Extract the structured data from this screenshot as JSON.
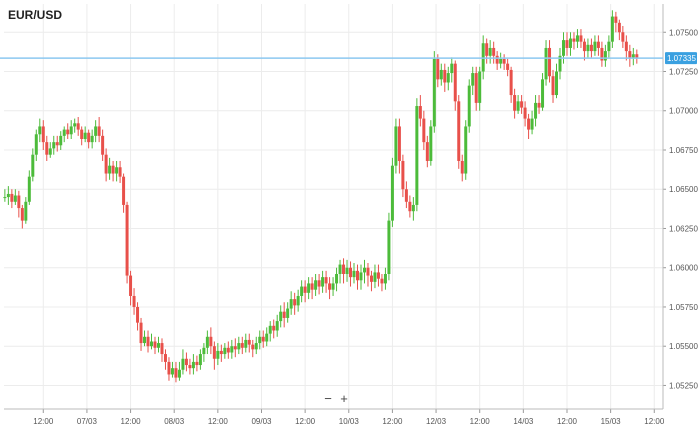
{
  "chart_data": {
    "type": "candlestick",
    "title": "EUR/USD",
    "ylim": [
      1.051,
      1.0768
    ],
    "y_ticks": [
      "1.07500",
      "1.07250",
      "1.07000",
      "1.06750",
      "1.06500",
      "1.06250",
      "1.06000",
      "1.05750",
      "1.05500",
      "1.05250"
    ],
    "x_ticks": [
      "12:00",
      "07/03",
      "12:00",
      "08/03",
      "12:00",
      "09/03",
      "12:00",
      "10/03",
      "12:00",
      "12/03",
      "12:00",
      "14/03",
      "12:00",
      "15/03",
      "12:00"
    ],
    "x_tick_positions": [
      0.5,
      1,
      1.5,
      2,
      2.5,
      3,
      3.5,
      4,
      4.5,
      5,
      5.5,
      6,
      6.5,
      7,
      7.5
    ],
    "x_range": [
      0.05,
      7.6
    ],
    "current_price": "1.07335",
    "current_price_value": 1.07335,
    "colors": {
      "up": "#4cbb3a",
      "down": "#e8504a",
      "price_line": "#8cc8f0",
      "price_tag": "#3aa0e0",
      "grid": "#ececec"
    },
    "grid": true,
    "candles": [
      [
        0.06,
        1.0645,
        1.0645,
        1.065,
        1.0642
      ],
      [
        0.1,
        1.0645,
        1.0647,
        1.0652,
        1.064
      ],
      [
        0.14,
        1.0647,
        1.0642,
        1.065,
        1.0638
      ],
      [
        0.18,
        1.0642,
        1.0646,
        1.065,
        1.064
      ],
      [
        0.22,
        1.0646,
        1.0638,
        1.0649,
        1.0632
      ],
      [
        0.26,
        1.0638,
        1.063,
        1.064,
        1.0625
      ],
      [
        0.3,
        1.063,
        1.0642,
        1.0645,
        1.0628
      ],
      [
        0.34,
        1.0642,
        1.0658,
        1.0662,
        1.064
      ],
      [
        0.38,
        1.0658,
        1.0672,
        1.0676,
        1.0655
      ],
      [
        0.42,
        1.0672,
        1.0685,
        1.0688,
        1.0668
      ],
      [
        0.46,
        1.0685,
        1.069,
        1.0695,
        1.068
      ],
      [
        0.5,
        1.069,
        1.068,
        1.0694,
        1.0675
      ],
      [
        0.54,
        1.068,
        1.0672,
        1.0684,
        1.0668
      ],
      [
        0.58,
        1.0672,
        1.0676,
        1.068,
        1.067
      ],
      [
        0.62,
        1.0676,
        1.068,
        1.0684,
        1.0672
      ],
      [
        0.66,
        1.068,
        1.0678,
        1.0684,
        1.0674
      ],
      [
        0.7,
        1.0678,
        1.0684,
        1.0687,
        1.0675
      ],
      [
        0.74,
        1.0684,
        1.0688,
        1.069,
        1.068
      ],
      [
        0.78,
        1.0688,
        1.0685,
        1.0692,
        1.0682
      ],
      [
        0.82,
        1.0685,
        1.069,
        1.0694,
        1.0682
      ],
      [
        0.86,
        1.069,
        1.0692,
        1.0695,
        1.0686
      ],
      [
        0.9,
        1.0692,
        1.0688,
        1.0696,
        1.0684
      ],
      [
        0.94,
        1.0688,
        1.0682,
        1.069,
        1.0678
      ],
      [
        0.98,
        1.0682,
        1.0686,
        1.069,
        1.068
      ],
      [
        1.02,
        1.0686,
        1.068,
        1.0688,
        1.0676
      ],
      [
        1.06,
        1.068,
        1.0684,
        1.0688,
        1.0676
      ],
      [
        1.1,
        1.0684,
        1.069,
        1.0694,
        1.068
      ],
      [
        1.14,
        1.069,
        1.0684,
        1.0696,
        1.068
      ],
      [
        1.18,
        1.0684,
        1.0672,
        1.0688,
        1.0668
      ],
      [
        1.22,
        1.0672,
        1.066,
        1.0676,
        1.0655
      ],
      [
        1.26,
        1.066,
        1.0665,
        1.067,
        1.0656
      ],
      [
        1.3,
        1.0665,
        1.066,
        1.0668,
        1.0655
      ],
      [
        1.34,
        1.066,
        1.0664,
        1.0668,
        1.0655
      ],
      [
        1.38,
        1.0664,
        1.0658,
        1.0668,
        1.0654
      ],
      [
        1.42,
        1.0658,
        1.064,
        1.066,
        1.0635
      ],
      [
        1.46,
        1.064,
        1.0595,
        1.0642,
        1.059
      ],
      [
        1.5,
        1.0595,
        1.0582,
        1.0598,
        1.0576
      ],
      [
        1.54,
        1.0582,
        1.0575,
        1.0587,
        1.057
      ],
      [
        1.58,
        1.0575,
        1.0565,
        1.0578,
        1.056
      ],
      [
        1.62,
        1.0565,
        1.0552,
        1.0568,
        1.0547
      ],
      [
        1.66,
        1.0552,
        1.0556,
        1.056,
        1.055
      ],
      [
        1.7,
        1.0556,
        1.055,
        1.056,
        1.0546
      ],
      [
        1.74,
        1.055,
        1.0553,
        1.0558,
        1.0548
      ],
      [
        1.78,
        1.0553,
        1.0549,
        1.0556,
        1.0545
      ],
      [
        1.82,
        1.0549,
        1.0552,
        1.0556,
        1.0546
      ],
      [
        1.86,
        1.0552,
        1.0545,
        1.0555,
        1.054
      ],
      [
        1.9,
        1.0545,
        1.054,
        1.0548,
        1.0535
      ],
      [
        1.94,
        1.054,
        1.0532,
        1.0543,
        1.0528
      ],
      [
        1.98,
        1.0532,
        1.0536,
        1.054,
        1.053
      ],
      [
        2.02,
        1.0536,
        1.053,
        1.054,
        1.0527
      ],
      [
        2.06,
        1.053,
        1.0535,
        1.054,
        1.0528
      ],
      [
        2.1,
        1.0535,
        1.0542,
        1.0548,
        1.0532
      ],
      [
        2.14,
        1.0542,
        1.0538,
        1.0546,
        1.0534
      ],
      [
        2.18,
        1.0538,
        1.0536,
        1.0542,
        1.0532
      ],
      [
        2.22,
        1.0536,
        1.054,
        1.0545,
        1.0532
      ],
      [
        2.26,
        1.054,
        1.0538,
        1.0544,
        1.0534
      ],
      [
        2.3,
        1.0538,
        1.0545,
        1.0548,
        1.0535
      ],
      [
        2.34,
        1.0545,
        1.0549,
        1.0552,
        1.054
      ],
      [
        2.38,
        1.0549,
        1.0556,
        1.056,
        1.0545
      ],
      [
        2.42,
        1.0556,
        1.055,
        1.0562,
        1.0545
      ],
      [
        2.46,
        1.055,
        1.0542,
        1.0553,
        1.0535
      ],
      [
        2.5,
        1.0542,
        1.0547,
        1.0552,
        1.0538
      ],
      [
        2.54,
        1.0547,
        1.0545,
        1.0551,
        1.054
      ],
      [
        2.58,
        1.0545,
        1.0549,
        1.0552,
        1.0542
      ],
      [
        2.62,
        1.0549,
        1.0546,
        1.0553,
        1.0542
      ],
      [
        2.66,
        1.0546,
        1.055,
        1.0554,
        1.0542
      ],
      [
        2.7,
        1.055,
        1.0548,
        1.0555,
        1.0543
      ],
      [
        2.74,
        1.0548,
        1.0552,
        1.0556,
        1.0545
      ],
      [
        2.78,
        1.0552,
        1.0549,
        1.0556,
        1.0545
      ],
      [
        2.82,
        1.0549,
        1.0554,
        1.0558,
        1.0546
      ],
      [
        2.86,
        1.0554,
        1.0551,
        1.0558,
        1.0546
      ],
      [
        2.9,
        1.0551,
        1.0548,
        1.0554,
        1.0543
      ],
      [
        2.94,
        1.0548,
        1.0552,
        1.0556,
        1.0545
      ],
      [
        2.98,
        1.0552,
        1.0556,
        1.056,
        1.0548
      ],
      [
        3.02,
        1.0556,
        1.0553,
        1.056,
        1.0549
      ],
      [
        3.06,
        1.0553,
        1.0558,
        1.0562,
        1.055
      ],
      [
        3.1,
        1.0558,
        1.0563,
        1.0566,
        1.0553
      ],
      [
        3.14,
        1.0563,
        1.056,
        1.0567,
        1.0555
      ],
      [
        3.18,
        1.056,
        1.0566,
        1.057,
        1.0556
      ],
      [
        3.22,
        1.0566,
        1.0572,
        1.0576,
        1.0562
      ],
      [
        3.26,
        1.0572,
        1.0568,
        1.0578,
        1.0562
      ],
      [
        3.3,
        1.0568,
        1.0574,
        1.0578,
        1.0565
      ],
      [
        3.34,
        1.0574,
        1.058,
        1.0585,
        1.057
      ],
      [
        3.38,
        1.058,
        1.0576,
        1.0584,
        1.057
      ],
      [
        3.42,
        1.0576,
        1.0582,
        1.0586,
        1.0572
      ],
      [
        3.46,
        1.0582,
        1.0588,
        1.0592,
        1.0578
      ],
      [
        3.5,
        1.0588,
        1.0584,
        1.0592,
        1.0578
      ],
      [
        3.54,
        1.0584,
        1.059,
        1.0594,
        1.058
      ],
      [
        3.58,
        1.059,
        1.0586,
        1.0594,
        1.058
      ],
      [
        3.62,
        1.0586,
        1.0592,
        1.0596,
        1.0582
      ],
      [
        3.66,
        1.0592,
        1.0588,
        1.0596,
        1.0583
      ],
      [
        3.7,
        1.0588,
        1.0594,
        1.0598,
        1.0584
      ],
      [
        3.74,
        1.0594,
        1.059,
        1.0598,
        1.0584
      ],
      [
        3.78,
        1.059,
        1.0586,
        1.0594,
        1.058
      ],
      [
        3.82,
        1.0586,
        1.059,
        1.0594,
        1.0582
      ],
      [
        3.86,
        1.059,
        1.0596,
        1.06,
        1.0585
      ],
      [
        3.9,
        1.0596,
        1.0602,
        1.0605,
        1.059
      ],
      [
        3.94,
        1.0602,
        1.0596,
        1.0606,
        1.059
      ],
      [
        3.98,
        1.0596,
        1.06,
        1.0605,
        1.0591
      ],
      [
        4.02,
        1.06,
        1.0594,
        1.0604,
        1.0588
      ],
      [
        4.06,
        1.0594,
        1.0598,
        1.0603,
        1.059
      ],
      [
        4.1,
        1.0598,
        1.0592,
        1.0602,
        1.0586
      ],
      [
        4.14,
        1.0592,
        1.0597,
        1.0602,
        1.0586
      ],
      [
        4.18,
        1.0597,
        1.06,
        1.0605,
        1.059
      ],
      [
        4.22,
        1.06,
        1.0595,
        1.0603,
        1.0588
      ],
      [
        4.26,
        1.0595,
        1.0591,
        1.0598,
        1.0585
      ],
      [
        4.3,
        1.0591,
        1.0597,
        1.0602,
        1.0587
      ],
      [
        4.34,
        1.0597,
        1.0593,
        1.0602,
        1.0588
      ],
      [
        4.38,
        1.0593,
        1.059,
        1.0596,
        1.0585
      ],
      [
        4.42,
        1.059,
        1.0596,
        1.06,
        1.0586
      ],
      [
        4.46,
        1.0596,
        1.063,
        1.0635,
        1.0592
      ],
      [
        4.5,
        1.063,
        1.0665,
        1.067,
        1.0626
      ],
      [
        4.54,
        1.0665,
        1.069,
        1.0695,
        1.066
      ],
      [
        4.58,
        1.069,
        1.0668,
        1.0695,
        1.066
      ],
      [
        4.62,
        1.0668,
        1.065,
        1.0672,
        1.0645
      ],
      [
        4.66,
        1.065,
        1.0642,
        1.0655,
        1.0638
      ],
      [
        4.7,
        1.0642,
        1.0636,
        1.0646,
        1.0632
      ],
      [
        4.74,
        1.0636,
        1.064,
        1.0645,
        1.063
      ],
      [
        4.78,
        1.064,
        1.0703,
        1.0708,
        1.0636
      ],
      [
        4.82,
        1.0703,
        1.0695,
        1.071,
        1.069
      ],
      [
        4.86,
        1.0695,
        1.068,
        1.07,
        1.0675
      ],
      [
        4.9,
        1.068,
        1.0668,
        1.0684,
        1.0664
      ],
      [
        4.94,
        1.0668,
        1.069,
        1.0694,
        1.0665
      ],
      [
        4.98,
        1.069,
        1.0733,
        1.0738,
        1.0686
      ],
      [
        5.02,
        1.0733,
        1.072,
        1.0736,
        1.0715
      ],
      [
        5.06,
        1.072,
        1.0726,
        1.073,
        1.0716
      ],
      [
        5.1,
        1.0726,
        1.0718,
        1.073,
        1.0712
      ],
      [
        5.14,
        1.0718,
        1.0724,
        1.0728,
        1.0713
      ],
      [
        5.18,
        1.0724,
        1.073,
        1.0734,
        1.0718
      ],
      [
        5.22,
        1.073,
        1.0706,
        1.0732,
        1.07
      ],
      [
        5.26,
        1.0706,
        1.0668,
        1.071,
        1.0663
      ],
      [
        5.3,
        1.0668,
        1.066,
        1.0672,
        1.0655
      ],
      [
        5.34,
        1.066,
        1.069,
        1.0694,
        1.0656
      ],
      [
        5.38,
        1.069,
        1.0716,
        1.072,
        1.0686
      ],
      [
        5.42,
        1.0716,
        1.0724,
        1.0728,
        1.071
      ],
      [
        5.46,
        1.0724,
        1.0705,
        1.0728,
        1.07
      ],
      [
        5.5,
        1.0705,
        1.0725,
        1.0728,
        1.07
      ],
      [
        5.54,
        1.0725,
        1.0743,
        1.0748,
        1.072
      ],
      [
        5.58,
        1.0743,
        1.0735,
        1.0746,
        1.073
      ],
      [
        5.62,
        1.0735,
        1.074,
        1.0745,
        1.073
      ],
      [
        5.66,
        1.074,
        1.0735,
        1.0744,
        1.073
      ],
      [
        5.7,
        1.0735,
        1.073,
        1.0738,
        1.0726
      ],
      [
        5.74,
        1.073,
        1.0733,
        1.0737,
        1.0727
      ],
      [
        5.78,
        1.0733,
        1.073,
        1.0736,
        1.0726
      ],
      [
        5.82,
        1.073,
        1.0726,
        1.0733,
        1.0722
      ],
      [
        5.86,
        1.0726,
        1.071,
        1.0728,
        1.0705
      ],
      [
        5.9,
        1.071,
        1.07,
        1.0714,
        1.0695
      ],
      [
        5.94,
        1.07,
        1.0706,
        1.071,
        1.0698
      ],
      [
        5.98,
        1.0706,
        1.0702,
        1.071,
        1.0698
      ],
      [
        6.02,
        1.0702,
        1.0695,
        1.0706,
        1.069
      ],
      [
        6.06,
        1.0695,
        1.0688,
        1.0698,
        1.0682
      ],
      [
        6.1,
        1.0688,
        1.0695,
        1.07,
        1.0685
      ],
      [
        6.14,
        1.0695,
        1.0705,
        1.071,
        1.069
      ],
      [
        6.18,
        1.0705,
        1.0702,
        1.071,
        1.0698
      ],
      [
        6.22,
        1.0702,
        1.072,
        1.0724,
        1.07
      ],
      [
        6.26,
        1.072,
        1.074,
        1.0745,
        1.0716
      ],
      [
        6.3,
        1.074,
        1.0722,
        1.0745,
        1.0718
      ],
      [
        6.34,
        1.0722,
        1.071,
        1.0726,
        1.0705
      ],
      [
        6.38,
        1.071,
        1.0725,
        1.073,
        1.0708
      ],
      [
        6.42,
        1.0725,
        1.0735,
        1.074,
        1.072
      ],
      [
        6.46,
        1.0735,
        1.0745,
        1.075,
        1.073
      ],
      [
        6.5,
        1.0745,
        1.074,
        1.075,
        1.0735
      ],
      [
        6.54,
        1.074,
        1.0746,
        1.075,
        1.0735
      ],
      [
        6.58,
        1.0746,
        1.0744,
        1.075,
        1.0739
      ],
      [
        6.62,
        1.0744,
        1.0748,
        1.0752,
        1.074
      ],
      [
        6.66,
        1.0748,
        1.0744,
        1.0752,
        1.074
      ],
      [
        6.7,
        1.0744,
        1.0738,
        1.0746,
        1.0732
      ],
      [
        6.74,
        1.0738,
        1.0742,
        1.0746,
        1.0734
      ],
      [
        6.78,
        1.0742,
        1.0738,
        1.0746,
        1.0734
      ],
      [
        6.82,
        1.0738,
        1.0744,
        1.0748,
        1.0735
      ],
      [
        6.86,
        1.0744,
        1.074,
        1.0748,
        1.0735
      ],
      [
        6.9,
        1.074,
        1.0732,
        1.0744,
        1.0728
      ],
      [
        6.94,
        1.0732,
        1.0738,
        1.0742,
        1.0728
      ],
      [
        6.98,
        1.0738,
        1.0744,
        1.0748,
        1.0734
      ],
      [
        7.02,
        1.0744,
        1.076,
        1.0764,
        1.074
      ],
      [
        7.06,
        1.076,
        1.0756,
        1.0763,
        1.075
      ],
      [
        7.1,
        1.0756,
        1.075,
        1.0758,
        1.0745
      ],
      [
        7.14,
        1.075,
        1.0744,
        1.0754,
        1.074
      ],
      [
        7.18,
        1.0744,
        1.0738,
        1.0748,
        1.0732
      ],
      [
        7.22,
        1.0738,
        1.0734,
        1.0742,
        1.0728
      ],
      [
        7.26,
        1.0734,
        1.0736,
        1.074,
        1.0729
      ],
      [
        7.3,
        1.0736,
        1.0734,
        1.0739,
        1.073
      ]
    ]
  },
  "controls": {
    "zoom_out": "−",
    "zoom_in": "+"
  }
}
